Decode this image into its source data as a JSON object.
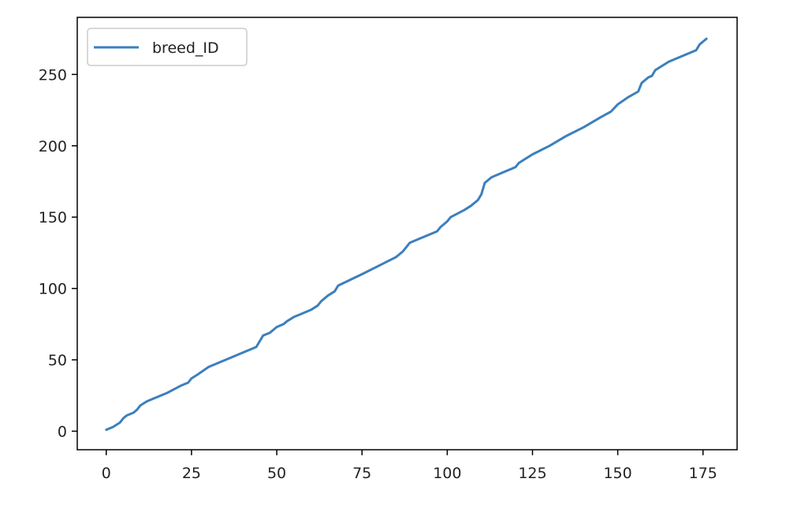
{
  "chart_data": {
    "type": "line",
    "title": "",
    "xlabel": "",
    "ylabel": "",
    "xlim": [
      -8.5,
      185
    ],
    "ylim": [
      -13,
      290
    ],
    "xticks": [
      0,
      25,
      50,
      75,
      100,
      125,
      150,
      175
    ],
    "yticks": [
      0,
      50,
      100,
      150,
      200,
      250
    ],
    "xtick_labels": [
      "0",
      "25",
      "50",
      "75",
      "100",
      "125",
      "150",
      "175"
    ],
    "ytick_labels": [
      "0",
      "50",
      "100",
      "150",
      "200",
      "250"
    ],
    "grid": false,
    "legend": {
      "position": "top-left",
      "entries": [
        "breed_ID"
      ]
    },
    "series": [
      {
        "name": "breed_ID",
        "color": "#3c7fbd",
        "points": [
          [
            0,
            1
          ],
          [
            2,
            3
          ],
          [
            4,
            6
          ],
          [
            5,
            9
          ],
          [
            6,
            11
          ],
          [
            8,
            13
          ],
          [
            9,
            15
          ],
          [
            10,
            18
          ],
          [
            12,
            21
          ],
          [
            18,
            27
          ],
          [
            22,
            32
          ],
          [
            24,
            34
          ],
          [
            25,
            37
          ],
          [
            27,
            40
          ],
          [
            30,
            45
          ],
          [
            44,
            59
          ],
          [
            45,
            63
          ],
          [
            46,
            67
          ],
          [
            48,
            69
          ],
          [
            50,
            73
          ],
          [
            52,
            75
          ],
          [
            53,
            77
          ],
          [
            55,
            80
          ],
          [
            58,
            83
          ],
          [
            60,
            85
          ],
          [
            62,
            88
          ],
          [
            63,
            91
          ],
          [
            65,
            95
          ],
          [
            67,
            98
          ],
          [
            68,
            102
          ],
          [
            75,
            110
          ],
          [
            80,
            116
          ],
          [
            85,
            122
          ],
          [
            87,
            126
          ],
          [
            88,
            129
          ],
          [
            89,
            132
          ],
          [
            92,
            135
          ],
          [
            95,
            138
          ],
          [
            97,
            140
          ],
          [
            98,
            143
          ],
          [
            100,
            147
          ],
          [
            101,
            150
          ],
          [
            105,
            155
          ],
          [
            107,
            158
          ],
          [
            109,
            162
          ],
          [
            110,
            166
          ],
          [
            111,
            174
          ],
          [
            113,
            178
          ],
          [
            120,
            185
          ],
          [
            121,
            188
          ],
          [
            125,
            194
          ],
          [
            130,
            200
          ],
          [
            135,
            207
          ],
          [
            140,
            213
          ],
          [
            145,
            220
          ],
          [
            148,
            224
          ],
          [
            150,
            229
          ],
          [
            153,
            234
          ],
          [
            156,
            238
          ],
          [
            157,
            244
          ],
          [
            159,
            248
          ],
          [
            160,
            249
          ],
          [
            161,
            253
          ],
          [
            163,
            256
          ],
          [
            165,
            259
          ],
          [
            173,
            267
          ],
          [
            174,
            271
          ],
          [
            176,
            275
          ]
        ]
      }
    ]
  }
}
